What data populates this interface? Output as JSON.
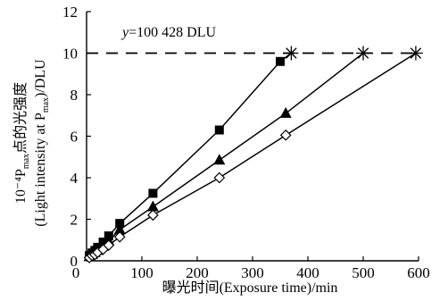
{
  "chart_data": {
    "type": "line",
    "xlabel": "曝光时间(Exposure time)/min",
    "ylabel_line1": "10⁻⁴P",
    "ylabel_line1_sub": "max",
    "ylabel_line1_rest": "点的光强度",
    "ylabel_line2": "(Light intensity at P",
    "ylabel_line2_sub": "max",
    "ylabel_line2_rest": ")/DLU",
    "xlim": [
      0,
      600
    ],
    "ylim": [
      0,
      12
    ],
    "xticks": [
      "0",
      "100",
      "200",
      "300",
      "400",
      "500",
      "600"
    ],
    "yticks": [
      "0",
      "2",
      "4",
      "6",
      "8",
      "10",
      "12"
    ],
    "grid": false,
    "reference_line": {
      "y": 10,
      "label_italic": "y",
      "label_rest": "=100 428 DLU",
      "style": "dashed"
    },
    "series": [
      {
        "marker": "square-filled",
        "x": [
          5,
          10,
          15,
          20,
          30,
          40,
          60,
          120,
          240,
          350
        ],
        "y": [
          0.25,
          0.38,
          0.5,
          0.65,
          0.9,
          1.2,
          1.8,
          3.25,
          6.3,
          9.6
        ],
        "end": [
          370,
          10
        ]
      },
      {
        "marker": "triangle-filled",
        "x": [
          5,
          10,
          15,
          20,
          30,
          40,
          60,
          120,
          240,
          360
        ],
        "y": [
          0.2,
          0.3,
          0.4,
          0.5,
          0.7,
          0.95,
          1.5,
          2.6,
          4.85,
          7.1
        ],
        "end": [
          500,
          10
        ]
      },
      {
        "marker": "diamond-open",
        "x": [
          5,
          10,
          15,
          20,
          30,
          40,
          60,
          120,
          240,
          360
        ],
        "y": [
          0.15,
          0.25,
          0.3,
          0.4,
          0.55,
          0.75,
          1.15,
          2.2,
          4.0,
          6.05
        ],
        "end": [
          595,
          10
        ]
      }
    ]
  }
}
